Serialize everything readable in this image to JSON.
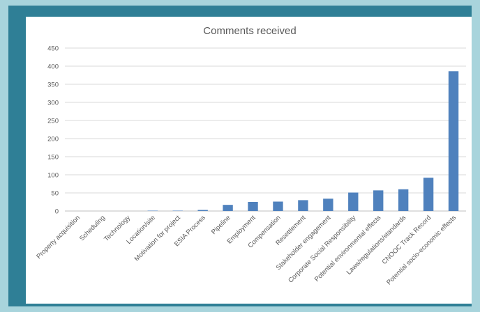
{
  "chart_data": {
    "type": "bar",
    "title": "Comments received",
    "xlabel": "",
    "ylabel": "",
    "ylim": [
      0,
      450
    ],
    "yticks": [
      0,
      50,
      100,
      150,
      200,
      250,
      300,
      350,
      400,
      450
    ],
    "grid": true,
    "legend": "none",
    "bar_color": "#4f81bd",
    "categories": [
      "Property acquisition",
      "Scheduling",
      "Technology",
      "Location/site",
      "Motivation for project",
      "ESIA Process",
      "Pipeline",
      "Employment",
      "Compensation",
      "Resettlement",
      "Stakeholder engagement",
      "Corporate Social Responsibility",
      "Potential environmental effects",
      "Laws/regulations/standards",
      "CNOOC Track Record",
      "Potential socio-economic effects"
    ],
    "values": [
      0,
      0,
      0,
      1,
      1,
      3,
      17,
      25,
      26,
      30,
      34,
      51,
      57,
      60,
      92,
      386
    ]
  }
}
